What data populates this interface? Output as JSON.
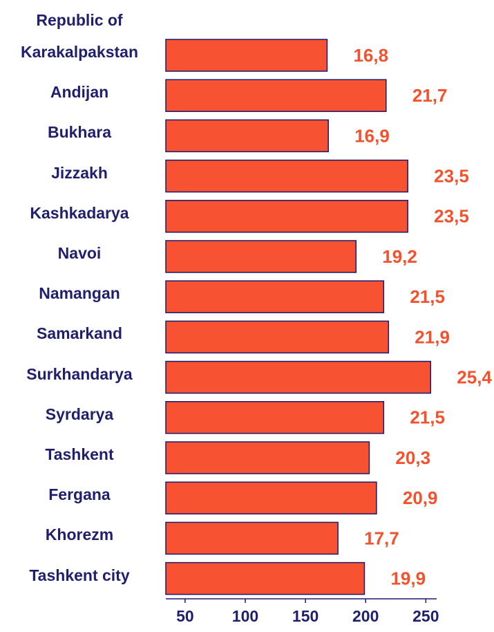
{
  "chart_data": {
    "type": "hbar",
    "categories": [
      "Republic of Karakalpakstan",
      "Andijan",
      "Bukhara",
      "Jizzakh",
      "Kashkadarya",
      "Navoi",
      "Namangan",
      "Samarkand",
      "Surkhandarya",
      "Syrdarya",
      "Tashkent",
      "Fergana",
      "Khorezm",
      "Tashkent city"
    ],
    "values": [
      168,
      217,
      169,
      235,
      235,
      192,
      215,
      219,
      254,
      215,
      203,
      209,
      177,
      199
    ],
    "value_labels": [
      "16,8",
      "21,7",
      "16,9",
      "23,5",
      "23,5",
      "19,2",
      "21,5",
      "21,9",
      "25,4",
      "21,5",
      "20,3",
      "20,9",
      "17,7",
      "19,9"
    ],
    "color": "#f75232",
    "xlim": [
      34,
      259
    ],
    "xticks": [
      50,
      100,
      150,
      200,
      250
    ]
  }
}
